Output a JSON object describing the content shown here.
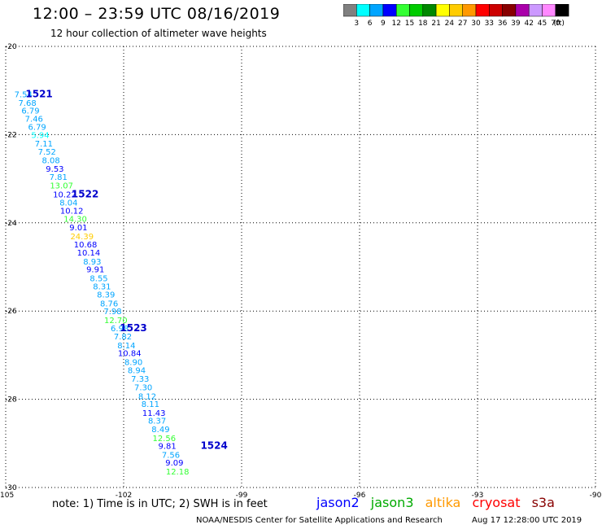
{
  "header": {
    "title": "12:00 – 23:59 UTC 08/16/2019",
    "subtitle": "12 hour collection of altimeter wave heights"
  },
  "colorbar": {
    "unit": "(ft)",
    "bins": [
      {
        "label": "3",
        "color": "#808080"
      },
      {
        "label": "6",
        "color": "#00ffff"
      },
      {
        "label": "9",
        "color": "#00a5ff"
      },
      {
        "label": "12",
        "color": "#0000ff"
      },
      {
        "label": "15",
        "color": "#33ff33"
      },
      {
        "label": "18",
        "color": "#00cc00"
      },
      {
        "label": "21",
        "color": "#008800"
      },
      {
        "label": "24",
        "color": "#ffff00"
      },
      {
        "label": "27",
        "color": "#ffcc00"
      },
      {
        "label": "30",
        "color": "#ff9900"
      },
      {
        "label": "33",
        "color": "#ff0000"
      },
      {
        "label": "36",
        "color": "#cc0000"
      },
      {
        "label": "39",
        "color": "#880000"
      },
      {
        "label": "42",
        "color": "#aa00aa"
      },
      {
        "label": "45",
        "color": "#cc99ff"
      },
      {
        "label": "70",
        "color": "#ff88ff"
      },
      {
        "label": "",
        "color": "#000000"
      }
    ]
  },
  "chart_data": {
    "type": "scatter",
    "xlim": [
      -105,
      -90
    ],
    "ylim": [
      -30,
      -20
    ],
    "xticks": [
      "-105",
      "-102",
      "-99",
      "-96",
      "-93",
      "-90"
    ],
    "yticks": [
      "-20",
      "-22",
      "-24",
      "-26",
      "-28",
      "-30"
    ],
    "grid": true,
    "points": [
      {
        "x": -104.55,
        "y": -21.08,
        "label": "7.54",
        "color": "#00a5ff"
      },
      {
        "x": -104.45,
        "y": -21.27,
        "label": "7.68",
        "color": "#00a5ff"
      },
      {
        "x": -104.37,
        "y": -21.45,
        "label": "6.79",
        "color": "#00a5ff"
      },
      {
        "x": -104.28,
        "y": -21.63,
        "label": "7.46",
        "color": "#00a5ff"
      },
      {
        "x": -104.2,
        "y": -21.82,
        "label": "6.79",
        "color": "#00a5ff"
      },
      {
        "x": -104.12,
        "y": -22.0,
        "label": "5.94",
        "color": "#00ffff"
      },
      {
        "x": -104.03,
        "y": -22.2,
        "label": "7.11",
        "color": "#00a5ff"
      },
      {
        "x": -103.95,
        "y": -22.38,
        "label": "7.52",
        "color": "#00a5ff"
      },
      {
        "x": -103.85,
        "y": -22.57,
        "label": "8.08",
        "color": "#00a5ff"
      },
      {
        "x": -103.75,
        "y": -22.77,
        "label": "9.53",
        "color": "#0000ff"
      },
      {
        "x": -103.66,
        "y": -22.95,
        "label": "7.81",
        "color": "#00a5ff"
      },
      {
        "x": -103.58,
        "y": -23.15,
        "label": "13.07",
        "color": "#33ff33"
      },
      {
        "x": -103.5,
        "y": -23.35,
        "label": "10.22",
        "color": "#0000ff"
      },
      {
        "x": -103.4,
        "y": -23.53,
        "label": "8.04",
        "color": "#00a5ff"
      },
      {
        "x": -103.32,
        "y": -23.72,
        "label": "10.12",
        "color": "#0000ff"
      },
      {
        "x": -103.23,
        "y": -23.9,
        "label": "14.30",
        "color": "#33ff33"
      },
      {
        "x": -103.15,
        "y": -24.1,
        "label": "9.01",
        "color": "#0000ff"
      },
      {
        "x": -103.06,
        "y": -24.3,
        "label": "24.39",
        "color": "#ffcc00"
      },
      {
        "x": -102.97,
        "y": -24.48,
        "label": "10.68",
        "color": "#0000ff"
      },
      {
        "x": -102.89,
        "y": -24.67,
        "label": "10.14",
        "color": "#0000ff"
      },
      {
        "x": -102.8,
        "y": -24.87,
        "label": "8.93",
        "color": "#00a5ff"
      },
      {
        "x": -102.72,
        "y": -25.05,
        "label": "9.91",
        "color": "#0000ff"
      },
      {
        "x": -102.63,
        "y": -25.25,
        "label": "8.55",
        "color": "#00a5ff"
      },
      {
        "x": -102.55,
        "y": -25.43,
        "label": "8.31",
        "color": "#00a5ff"
      },
      {
        "x": -102.45,
        "y": -25.62,
        "label": "8.39",
        "color": "#00a5ff"
      },
      {
        "x": -102.37,
        "y": -25.82,
        "label": "8.76",
        "color": "#00a5ff"
      },
      {
        "x": -102.28,
        "y": -26.0,
        "label": "7.98",
        "color": "#00a5ff"
      },
      {
        "x": -102.2,
        "y": -26.2,
        "label": "12.70",
        "color": "#33ff33"
      },
      {
        "x": -102.1,
        "y": -26.38,
        "label": "6.98",
        "color": "#00a5ff"
      },
      {
        "x": -102.02,
        "y": -26.57,
        "label": "7.82",
        "color": "#00a5ff"
      },
      {
        "x": -101.93,
        "y": -26.77,
        "label": "8.14",
        "color": "#00a5ff"
      },
      {
        "x": -101.85,
        "y": -26.95,
        "label": "10.84",
        "color": "#0000ff"
      },
      {
        "x": -101.75,
        "y": -27.15,
        "label": "8.90",
        "color": "#00a5ff"
      },
      {
        "x": -101.67,
        "y": -27.33,
        "label": "8.94",
        "color": "#00a5ff"
      },
      {
        "x": -101.58,
        "y": -27.53,
        "label": "7.33",
        "color": "#00a5ff"
      },
      {
        "x": -101.5,
        "y": -27.72,
        "label": "7.30",
        "color": "#00a5ff"
      },
      {
        "x": -101.4,
        "y": -27.92,
        "label": "8.12",
        "color": "#00a5ff"
      },
      {
        "x": -101.32,
        "y": -28.1,
        "label": "8.11",
        "color": "#00a5ff"
      },
      {
        "x": -101.23,
        "y": -28.3,
        "label": "11.43",
        "color": "#0000ff"
      },
      {
        "x": -101.15,
        "y": -28.48,
        "label": "8.37",
        "color": "#00a5ff"
      },
      {
        "x": -101.06,
        "y": -28.67,
        "label": "8.49",
        "color": "#00a5ff"
      },
      {
        "x": -100.97,
        "y": -28.87,
        "label": "12.56",
        "color": "#33ff33"
      },
      {
        "x": -100.89,
        "y": -29.05,
        "label": "9.81",
        "color": "#0000ff"
      },
      {
        "x": -100.8,
        "y": -29.25,
        "label": "7.56",
        "color": "#00a5ff"
      },
      {
        "x": -100.71,
        "y": -29.43,
        "label": "9.09",
        "color": "#0000ff"
      },
      {
        "x": -100.63,
        "y": -29.63,
        "label": "12.18",
        "color": "#33ff33"
      }
    ],
    "track_labels": [
      {
        "x": -104.15,
        "y": -21.08,
        "label": "1521",
        "color": "#0000cc"
      },
      {
        "x": -102.98,
        "y": -23.35,
        "label": "1522",
        "color": "#0000cc"
      },
      {
        "x": -101.75,
        "y": -26.38,
        "label": "1523",
        "color": "#0000cc"
      },
      {
        "x": -99.7,
        "y": -29.05,
        "label": "1524",
        "color": "#0000cc"
      }
    ]
  },
  "footer": {
    "note": "note:  1) Time is in UTC;  2) SWH is in feet",
    "satellites": [
      {
        "name": "jason2",
        "color": "#0000ff"
      },
      {
        "name": "jason3",
        "color": "#00aa00"
      },
      {
        "name": "altika",
        "color": "#ff9900"
      },
      {
        "name": "cryosat",
        "color": "#ff0000"
      },
      {
        "name": "s3a",
        "color": "#880000"
      }
    ],
    "org": "NOAA/NESDIS Center for Satellite Applications and Research",
    "date": "Aug 17 12:28:00 UTC 2019"
  }
}
